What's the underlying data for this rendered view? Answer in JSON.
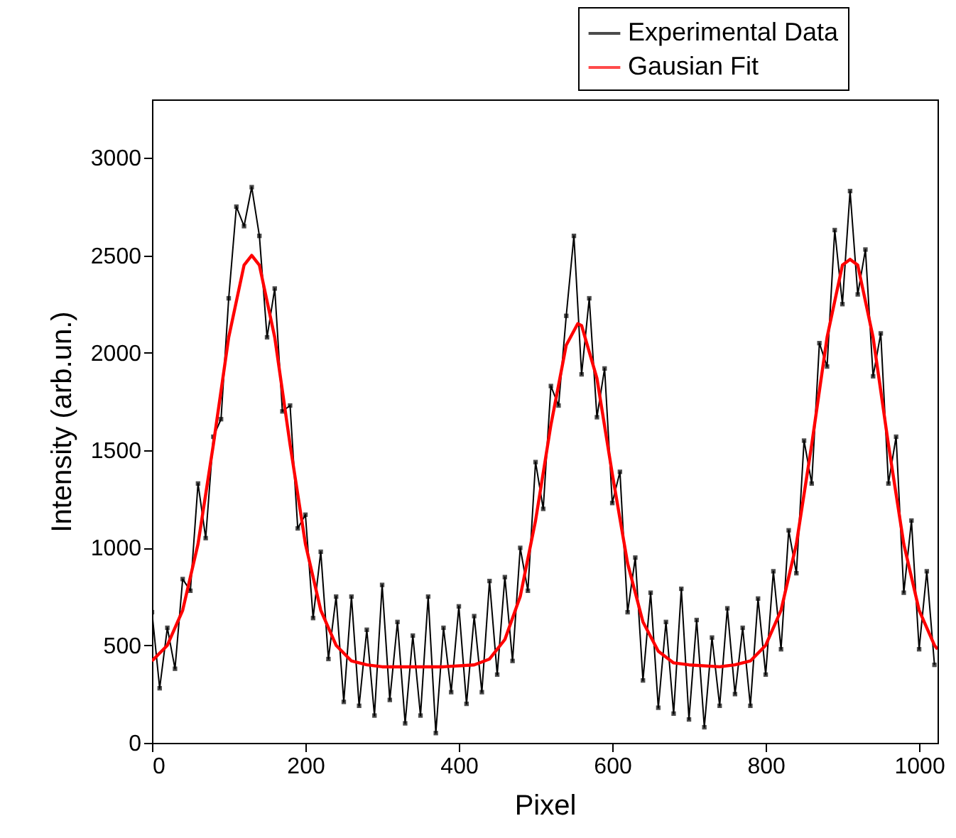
{
  "chart_data": {
    "type": "line",
    "xlabel": "Pixel",
    "ylabel": "Intensity (arb.un.)",
    "xlim": [
      0,
      1024
    ],
    "ylim": [
      0,
      3300
    ],
    "xticks": [
      0,
      200,
      400,
      600,
      800,
      1000
    ],
    "yticks": [
      0,
      500,
      1000,
      1500,
      2000,
      2500,
      3000
    ],
    "grid": false,
    "legend": "top right",
    "series": [
      {
        "name": "Experimental Data",
        "color": "#000000",
        "marker": "square",
        "x": [
          0,
          10,
          20,
          30,
          40,
          50,
          60,
          70,
          80,
          90,
          100,
          110,
          120,
          130,
          140,
          150,
          160,
          170,
          180,
          190,
          200,
          210,
          220,
          230,
          240,
          250,
          260,
          270,
          280,
          290,
          300,
          310,
          320,
          330,
          340,
          350,
          360,
          370,
          380,
          390,
          400,
          410,
          420,
          430,
          440,
          450,
          460,
          470,
          480,
          490,
          500,
          510,
          520,
          530,
          540,
          550,
          560,
          570,
          580,
          590,
          600,
          610,
          620,
          630,
          640,
          650,
          660,
          670,
          680,
          690,
          700,
          710,
          720,
          730,
          740,
          750,
          760,
          770,
          780,
          790,
          800,
          810,
          820,
          830,
          840,
          850,
          860,
          870,
          880,
          890,
          900,
          910,
          920,
          930,
          940,
          950,
          960,
          970,
          980,
          990,
          1000,
          1010,
          1020
        ],
        "values": [
          670,
          280,
          590,
          380,
          840,
          780,
          1330,
          1050,
          1570,
          1660,
          2280,
          2750,
          2650,
          2850,
          2600,
          2080,
          2330,
          1700,
          1730,
          1100,
          1170,
          640,
          980,
          430,
          750,
          210,
          750,
          190,
          580,
          140,
          810,
          220,
          620,
          100,
          550,
          140,
          750,
          50,
          590,
          260,
          700,
          200,
          650,
          260,
          830,
          350,
          850,
          420,
          1000,
          780,
          1440,
          1200,
          1830,
          1730,
          2190,
          2600,
          1890,
          2280,
          1670,
          1920,
          1230,
          1390,
          670,
          950,
          320,
          770,
          180,
          620,
          150,
          790,
          120,
          630,
          80,
          540,
          190,
          690,
          250,
          590,
          190,
          740,
          350,
          880,
          480,
          1090,
          870,
          1550,
          1330,
          2050,
          1930,
          2630,
          2250,
          2830,
          2300,
          2530,
          1880,
          2100,
          1330,
          1570,
          770,
          1140,
          480,
          880,
          400
        ]
      },
      {
        "name": "Gausian Fit",
        "color": "#ff0000",
        "marker": "none",
        "x": [
          0,
          20,
          40,
          60,
          80,
          100,
          120,
          130,
          140,
          160,
          180,
          200,
          220,
          240,
          260,
          280,
          300,
          340,
          380,
          420,
          440,
          460,
          480,
          500,
          520,
          540,
          555,
          560,
          580,
          600,
          620,
          640,
          660,
          680,
          700,
          740,
          760,
          780,
          800,
          820,
          840,
          860,
          880,
          900,
          910,
          920,
          940,
          960,
          980,
          1000,
          1020,
          1024
        ],
        "values": [
          420,
          500,
          680,
          1020,
          1530,
          2080,
          2450,
          2500,
          2450,
          2080,
          1530,
          1020,
          680,
          500,
          420,
          400,
          390,
          390,
          390,
          400,
          430,
          530,
          750,
          1140,
          1630,
          2040,
          2150,
          2140,
          1870,
          1380,
          920,
          620,
          470,
          410,
          400,
          390,
          400,
          420,
          500,
          680,
          1020,
          1530,
          2080,
          2450,
          2480,
          2450,
          2080,
          1530,
          1020,
          680,
          500,
          480
        ]
      }
    ]
  }
}
